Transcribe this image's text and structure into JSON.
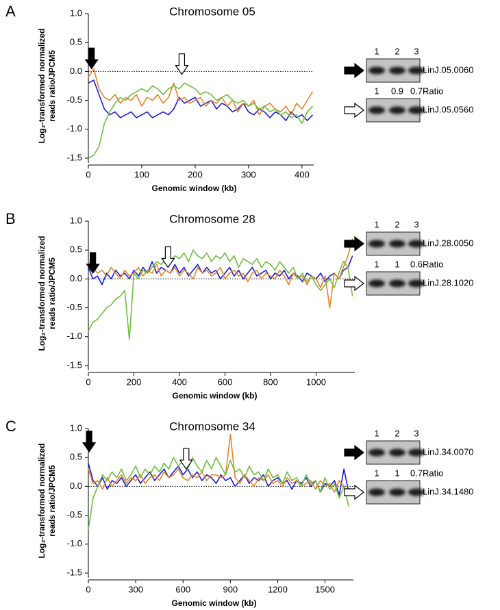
{
  "chart_data": [
    {
      "type": "line",
      "panel": "A",
      "title": "Chromosome 05",
      "xlabel": "Genomic window (kb)",
      "ylabel": [
        "Log₂-transformed normalized",
        "reads ratio/JPCM5"
      ],
      "x": [
        0,
        10,
        20,
        30,
        40,
        50,
        60,
        70,
        80,
        90,
        100,
        110,
        120,
        130,
        140,
        150,
        160,
        170,
        180,
        190,
        200,
        210,
        220,
        230,
        240,
        250,
        260,
        270,
        280,
        290,
        300,
        310,
        320,
        330,
        340,
        350,
        360,
        370,
        380,
        390,
        400,
        410,
        420
      ],
      "series": [
        {
          "color": "#1a1adc",
          "values": [
            -0.2,
            -0.15,
            -0.4,
            -0.65,
            -0.75,
            -0.7,
            -0.8,
            -0.75,
            -0.7,
            -0.8,
            -0.75,
            -0.7,
            -0.8,
            -0.75,
            -0.7,
            -0.75,
            -0.65,
            -0.45,
            -0.55,
            -0.5,
            -0.45,
            -0.6,
            -0.55,
            -0.5,
            -0.65,
            -0.55,
            -0.6,
            -0.7,
            -0.65,
            -0.55,
            -0.7,
            -0.75,
            -0.65,
            -0.7,
            -0.8,
            -0.7,
            -0.75,
            -0.85,
            -0.7,
            -0.8,
            -0.75,
            -0.85,
            -0.75
          ]
        },
        {
          "color": "#e8832a",
          "values": [
            -0.1,
            0.05,
            -0.3,
            -0.45,
            -0.5,
            -0.4,
            -0.55,
            -0.45,
            -0.5,
            -0.4,
            -0.6,
            -0.45,
            -0.5,
            -0.4,
            -0.55,
            -0.45,
            -0.2,
            -0.5,
            -0.45,
            -0.55,
            -0.5,
            -0.45,
            -0.6,
            -0.5,
            -0.55,
            -0.45,
            -0.6,
            -0.5,
            -0.7,
            -0.55,
            -0.6,
            -0.5,
            -0.75,
            -0.6,
            -0.55,
            -0.65,
            -0.7,
            -0.6,
            -0.75,
            -0.55,
            -0.65,
            -0.5,
            -0.35
          ]
        },
        {
          "color": "#6dbf3b",
          "values": [
            -1.5,
            -1.45,
            -1.3,
            -0.9,
            -0.7,
            -0.55,
            -0.45,
            -0.5,
            -0.4,
            -0.35,
            -0.3,
            -0.35,
            -0.25,
            -0.3,
            -0.4,
            -0.3,
            -0.25,
            -0.3,
            -0.2,
            -0.25,
            -0.3,
            -0.4,
            -0.35,
            -0.4,
            -0.5,
            -0.45,
            -0.4,
            -0.5,
            -0.55,
            -0.5,
            -0.6,
            -0.55,
            -0.65,
            -0.6,
            -0.7,
            -0.65,
            -0.75,
            -0.7,
            -0.8,
            -0.75,
            -0.9,
            -0.7,
            -0.6
          ]
        }
      ],
      "xlim": [
        0,
        422
      ],
      "ylim": [
        -1.5,
        1
      ],
      "xticks": [
        0,
        100,
        200,
        300,
        400
      ],
      "yticks": [
        {
          "value": 1,
          "label": "1.0"
        },
        0.5,
        {
          "value": 0,
          "label": "0.0"
        },
        -0.5,
        {
          "value": -1,
          "label": "-1.0"
        },
        -1.5
      ],
      "hline": 0,
      "arrows": [
        {
          "x": 6,
          "y": 0.05,
          "style": "filled"
        },
        {
          "x": 175,
          "y": -0.05,
          "style": "open"
        }
      ]
    },
    {
      "type": "line",
      "panel": "B",
      "title": "Chromosome 28",
      "xlabel": "Genomic window (kb)",
      "ylabel": [
        "Log₂-transformed normalized",
        "reads ratio/JPCM5"
      ],
      "x": [
        0,
        20,
        40,
        60,
        80,
        100,
        120,
        140,
        160,
        180,
        200,
        220,
        240,
        260,
        280,
        300,
        320,
        340,
        360,
        380,
        400,
        420,
        440,
        460,
        480,
        500,
        520,
        540,
        560,
        580,
        600,
        620,
        640,
        660,
        680,
        700,
        720,
        740,
        760,
        780,
        800,
        820,
        840,
        860,
        880,
        900,
        920,
        940,
        960,
        980,
        1000,
        1020,
        1040,
        1060,
        1080,
        1100,
        1120,
        1140,
        1160
      ],
      "series": [
        {
          "color": "#1a1adc",
          "values": [
            0.2,
            0.0,
            0.05,
            -0.1,
            0.1,
            0.0,
            0.15,
            0.05,
            0.1,
            0.0,
            0.15,
            0.05,
            0.2,
            0.1,
            0.3,
            0.1,
            0.2,
            0.15,
            0.1,
            0.25,
            0.1,
            0.2,
            0.05,
            0.15,
            0.25,
            0.1,
            0.2,
            0.1,
            0.15,
            0.0,
            0.1,
            0.2,
            0.05,
            0.15,
            0.0,
            0.1,
            0.2,
            0.05,
            0.1,
            0.15,
            0.0,
            0.1,
            0.05,
            0.15,
            0.0,
            0.1,
            0.05,
            -0.05,
            0.1,
            0.05,
            0.0,
            0.1,
            -0.05,
            0.05,
            0.1,
            0.0,
            0.15,
            0.2,
            0.4
          ]
        },
        {
          "color": "#e8832a",
          "values": [
            0.3,
            0.2,
            0.1,
            0.15,
            0.05,
            0.2,
            0.1,
            0.0,
            0.15,
            0.05,
            0.1,
            0.2,
            0.05,
            0.15,
            0.1,
            0.25,
            0.05,
            0.15,
            0.1,
            0.2,
            0.05,
            0.15,
            0.1,
            0.0,
            0.2,
            0.1,
            0.15,
            0.05,
            0.1,
            0.2,
            0.0,
            0.1,
            0.15,
            0.05,
            0.1,
            -0.05,
            0.1,
            0.15,
            0.0,
            0.1,
            0.05,
            0.0,
            0.15,
            0.05,
            -0.1,
            0.1,
            0.0,
            0.05,
            -0.1,
            0.05,
            0.0,
            -0.15,
            0.05,
            -0.5,
            0.1,
            0.0,
            0.2,
            0.4,
            0.7
          ]
        },
        {
          "color": "#6dbf3b",
          "values": [
            -0.9,
            -0.75,
            -0.7,
            -0.6,
            -0.5,
            -0.45,
            -0.35,
            -0.3,
            -0.2,
            -1.05,
            0.1,
            0.0,
            0.15,
            0.1,
            0.2,
            0.3,
            0.25,
            0.35,
            0.3,
            0.4,
            0.35,
            0.45,
            0.3,
            0.5,
            0.4,
            0.35,
            0.45,
            0.3,
            0.4,
            0.35,
            0.45,
            0.3,
            0.4,
            0.2,
            0.35,
            0.3,
            0.25,
            0.35,
            0.2,
            0.3,
            0.25,
            0.15,
            0.3,
            0.2,
            0.1,
            0.2,
            0.0,
            0.1,
            -0.05,
            0.05,
            -0.1,
            -0.2,
            -0.1,
            0.0,
            -0.15,
            0.1,
            0.3,
            0.2,
            -0.3
          ]
        }
      ],
      "xlim": [
        0,
        1170
      ],
      "ylim": [
        -1.5,
        1
      ],
      "xticks": [
        0,
        200,
        400,
        600,
        800,
        1000
      ],
      "yticks": [
        {
          "value": 1,
          "label": "1.0"
        },
        0.5,
        {
          "value": 0,
          "label": "0.0"
        },
        -0.5,
        {
          "value": -1,
          "label": "-1.0"
        },
        -1.5
      ],
      "hline": 0,
      "arrows": [
        {
          "x": 20,
          "y": 0.1,
          "style": "filled"
        },
        {
          "x": 350,
          "y": 0.2,
          "style": "open"
        }
      ]
    },
    {
      "type": "line",
      "panel": "C",
      "title": "Chromosome 34",
      "xlabel": "Genomic window (kb)",
      "ylabel": [
        "Log₂-transformed normalized",
        "reads ratio/JPCM5"
      ],
      "x": [
        0,
        30,
        60,
        90,
        120,
        150,
        180,
        210,
        240,
        270,
        300,
        330,
        360,
        390,
        420,
        450,
        480,
        510,
        540,
        570,
        600,
        630,
        660,
        690,
        720,
        750,
        780,
        810,
        840,
        870,
        900,
        930,
        960,
        990,
        1020,
        1050,
        1080,
        1110,
        1140,
        1170,
        1200,
        1230,
        1260,
        1290,
        1320,
        1350,
        1380,
        1410,
        1440,
        1470,
        1500,
        1530,
        1560,
        1590,
        1620,
        1650
      ],
      "series": [
        {
          "color": "#1a1adc",
          "values": [
            0.4,
            0.1,
            0.0,
            0.15,
            -0.05,
            0.1,
            0.05,
            0.15,
            0.0,
            0.1,
            0.2,
            0.05,
            0.15,
            0.25,
            0.1,
            0.2,
            0.3,
            0.15,
            0.25,
            0.35,
            0.2,
            0.3,
            0.15,
            0.25,
            0.1,
            0.2,
            0.15,
            0.05,
            0.2,
            0.1,
            0.15,
            0.0,
            0.1,
            0.2,
            0.05,
            0.15,
            0.1,
            0.2,
            0.0,
            0.1,
            0.15,
            0.05,
            0.1,
            -0.05,
            0.1,
            0.05,
            0.15,
            0.0,
            0.1,
            -0.1,
            0.05,
            0.0,
            0.1,
            -0.15,
            0.3,
            -0.1
          ]
        },
        {
          "color": "#e8832a",
          "values": [
            0.3,
            0.05,
            0.1,
            -0.05,
            0.15,
            0.0,
            0.1,
            0.2,
            0.05,
            0.15,
            0.1,
            0.2,
            0.05,
            0.15,
            0.2,
            0.1,
            0.25,
            0.15,
            0.2,
            0.3,
            0.15,
            0.1,
            0.2,
            0.15,
            0.25,
            0.1,
            0.2,
            0.2,
            0.15,
            0.2,
            0.9,
            0.15,
            0.05,
            0.2,
            0.1,
            0.0,
            0.15,
            0.1,
            0.2,
            0.05,
            0.1,
            0.0,
            0.15,
            0.05,
            0.1,
            0.0,
            0.05,
            0.1,
            -0.05,
            0.1,
            0.0,
            0.05,
            -0.1,
            0.1,
            0.0,
            -0.15
          ]
        },
        {
          "color": "#6dbf3b",
          "values": [
            -0.75,
            -0.2,
            0.0,
            0.2,
            0.1,
            0.25,
            0.15,
            0.3,
            0.1,
            0.2,
            0.35,
            0.15,
            0.3,
            0.2,
            0.35,
            0.25,
            0.4,
            0.3,
            0.5,
            0.35,
            0.45,
            0.3,
            0.5,
            0.35,
            0.25,
            0.45,
            0.3,
            0.5,
            0.35,
            0.2,
            0.45,
            0.25,
            0.3,
            0.15,
            0.35,
            0.2,
            0.25,
            0.1,
            0.3,
            0.15,
            0.2,
            0.05,
            0.25,
            0.1,
            0.15,
            0.0,
            0.2,
            0.05,
            0.1,
            -0.1,
            0.15,
            -0.05,
            0.05,
            -0.2,
            0.0,
            -0.35
          ]
        }
      ],
      "xlim": [
        0,
        1680
      ],
      "ylim": [
        -1.5,
        1
      ],
      "xticks": [
        0,
        300,
        600,
        900,
        1200,
        1500
      ],
      "yticks": [
        {
          "value": 1,
          "label": "1.0"
        },
        0.5,
        {
          "value": 0,
          "label": "0.0"
        },
        -0.5,
        {
          "value": -1,
          "label": "-1.0"
        },
        -1.5
      ],
      "hline": 0,
      "arrows": [
        {
          "x": 5,
          "y": 0.6,
          "style": "filled"
        },
        {
          "x": 620,
          "y": 0.3,
          "style": "open"
        }
      ]
    }
  ],
  "blots": [
    {
      "lanes": [
        "1",
        "2",
        "3"
      ],
      "upper_gene": "LinJ.05.0060",
      "ratio_label": "Ratio",
      "ratios": [
        1,
        0.9,
        0.7
      ],
      "lower_gene": "LinJ.05.0560"
    },
    {
      "lanes": [
        "1",
        "2",
        "3"
      ],
      "upper_gene": "LinJ.28.0050",
      "ratio_label": "Ratio",
      "ratios": [
        1,
        1,
        0.6
      ],
      "lower_gene": "LinJ.28.1020"
    },
    {
      "lanes": [
        "1",
        "2",
        "3"
      ],
      "upper_gene": "LinJ.34.0070",
      "ratio_label": "Ratio",
      "ratios": [
        1,
        1,
        0.7
      ],
      "lower_gene": "LinJ.34.1480"
    }
  ]
}
